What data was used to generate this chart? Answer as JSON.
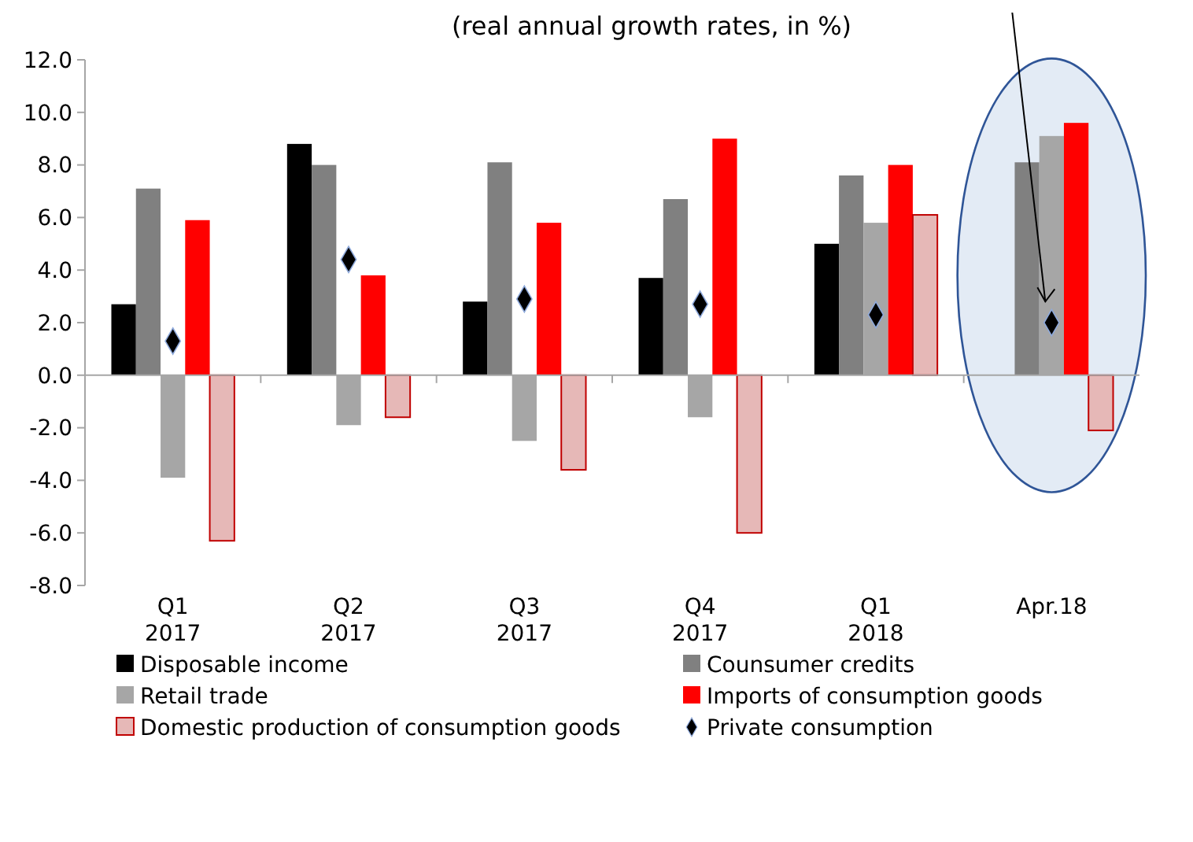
{
  "chart_data": {
    "type": "bar",
    "subtitle": "(real annual growth rates, in %)",
    "categories": [
      "Q1\n2017",
      "Q2\n2017",
      "Q3\n2017",
      "Q4\n2017",
      "Q1\n2018",
      "Apr.18"
    ],
    "series": [
      {
        "name": "Disposable income",
        "color": "#000000",
        "values": [
          2.7,
          8.8,
          2.8,
          3.7,
          5.0,
          null
        ]
      },
      {
        "name": "Counsumer credits",
        "color": "#808080",
        "values": [
          7.1,
          8.0,
          8.1,
          6.7,
          7.6,
          8.1
        ]
      },
      {
        "name": "Retail trade",
        "color": "#a6a6a6",
        "values": [
          -3.9,
          -1.9,
          -2.5,
          -1.6,
          5.8,
          9.1
        ]
      },
      {
        "name": "Imports of consumption goods",
        "color": "#ff0000",
        "values": [
          5.9,
          3.8,
          5.8,
          9.0,
          8.0,
          9.6
        ]
      },
      {
        "name": "Domestic production of consumption goods",
        "color": "#e6b8b7",
        "values": [
          -6.3,
          -1.6,
          -3.6,
          -6.0,
          6.1,
          -2.1
        ]
      },
      {
        "name": "Private consumption",
        "type": "scatter",
        "marker": "diamond",
        "color": "#000000",
        "x": [
          "Q1\n2017",
          "Q2\n2017",
          "Q3\n2017",
          "Q4\n2017",
          "Q1\n2018",
          "Apr.18"
        ],
        "values": [
          1.3,
          4.4,
          2.9,
          2.7,
          2.3,
          2.0
        ]
      }
    ],
    "ylim": [
      -8,
      12
    ],
    "yticks": [
      {
        "value": -8,
        "label": "-8.0"
      },
      {
        "value": -6,
        "label": "-6.0"
      },
      {
        "value": -4,
        "label": "-4.0"
      },
      {
        "value": -2,
        "label": "-2.0"
      },
      {
        "value": 0,
        "label": "0.0"
      },
      {
        "value": 2,
        "label": "2.0"
      },
      {
        "value": 4,
        "label": "4.0"
      },
      {
        "value": 6,
        "label": "6.0"
      },
      {
        "value": 8,
        "label": "8.0"
      },
      {
        "value": 10,
        "label": "10.0"
      },
      {
        "value": 12,
        "label": "12.0"
      }
    ],
    "legend": "bottom"
  }
}
